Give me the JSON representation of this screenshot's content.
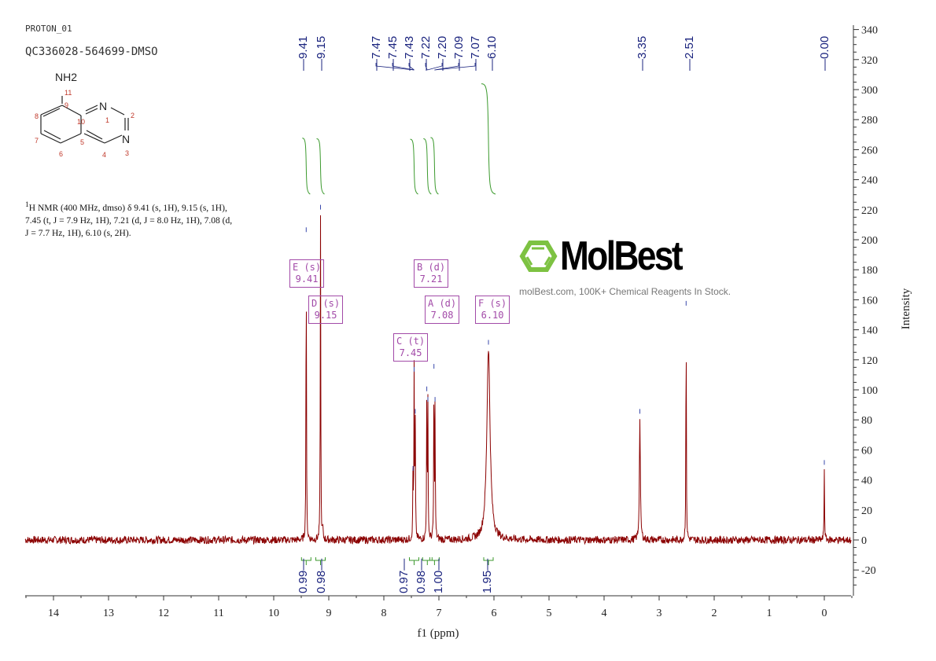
{
  "header": {
    "experiment": "PROTON_01",
    "sample": "QC336028-564699-DMSO"
  },
  "structure": {
    "substituent": "NH2",
    "atom_numbers": [
      "1",
      "2",
      "3",
      "4",
      "5",
      "6",
      "7",
      "8",
      "9",
      "10",
      "11"
    ],
    "heteroatoms": [
      "N",
      "N"
    ]
  },
  "nmr_description": {
    "line1": "H NMR (400 MHz, dmso) δ 9.41 (s, 1H), 9.15 (s, 1H),",
    "sup": "1",
    "line2": "7.45 (t, J = 7.9 Hz, 1H), 7.21 (d, J = 8.0 Hz, 1H), 7.08 (d,",
    "line3": "J = 7.7 Hz, 1H), 6.10 (s, 2H)."
  },
  "multiplet_boxes": [
    {
      "label": "E (s)",
      "value": "9.41"
    },
    {
      "label": "D (s)",
      "value": "9.15"
    },
    {
      "label": "B (d)",
      "value": "7.21"
    },
    {
      "label": "A (d)",
      "value": "7.08"
    },
    {
      "label": "F (s)",
      "value": "6.10"
    },
    {
      "label": "C (t)",
      "value": "7.45"
    }
  ],
  "watermark": {
    "logo_text": "MolBest",
    "tagline": "molBest.com, 100K+ Chemical Reagents In Stock.",
    "logo_color": "#7dc242"
  },
  "colors": {
    "spectrum": "#8b0000",
    "integral": "#3c9a2e",
    "peak_label": "#1a237e",
    "box": "#a24aa8"
  },
  "chart_data": {
    "type": "line",
    "xlabel": "f1 (ppm)",
    "ylabel": "Intensity",
    "xlim": [
      14.5,
      -0.5
    ],
    "ylim": [
      -30,
      345
    ],
    "x_reversed": true,
    "x_ticks": [
      "14",
      "13",
      "12",
      "11",
      "10",
      "9",
      "8",
      "7",
      "6",
      "5",
      "4",
      "3",
      "2",
      "1",
      "0"
    ],
    "y_ticks": [
      "340",
      "320",
      "300",
      "280",
      "260",
      "240",
      "220",
      "200",
      "180",
      "160",
      "140",
      "120",
      "100",
      "80",
      "60",
      "40",
      "20",
      "0",
      "-20"
    ],
    "peak_labels": [
      "9.41",
      "9.15",
      "7.47",
      "7.45",
      "7.43",
      "7.22",
      "7.20",
      "7.09",
      "7.07",
      "6.10",
      "3.35",
      "2.51",
      "0.00"
    ],
    "peaks": [
      {
        "ppm": 9.41,
        "intensity": 203
      },
      {
        "ppm": 9.15,
        "intensity": 218
      },
      {
        "ppm": 9.11,
        "intensity": 8
      },
      {
        "ppm": 7.47,
        "intensity": 44
      },
      {
        "ppm": 7.45,
        "intensity": 110
      },
      {
        "ppm": 7.43,
        "intensity": 82
      },
      {
        "ppm": 7.22,
        "intensity": 97
      },
      {
        "ppm": 7.2,
        "intensity": 90
      },
      {
        "ppm": 7.09,
        "intensity": 112
      },
      {
        "ppm": 7.07,
        "intensity": 90
      },
      {
        "ppm": 6.1,
        "intensity": 128
      },
      {
        "ppm": 3.35,
        "intensity": 82
      },
      {
        "ppm": 2.51,
        "intensity": 154
      },
      {
        "ppm": 0.0,
        "intensity": 48
      }
    ],
    "integrals": [
      {
        "ppm": 9.41,
        "value": "0.99"
      },
      {
        "ppm": 9.15,
        "value": "0.98"
      },
      {
        "ppm": 7.45,
        "value": "0.97"
      },
      {
        "ppm": 7.21,
        "value": "0.98"
      },
      {
        "ppm": 7.08,
        "value": "1.00"
      },
      {
        "ppm": 6.1,
        "value": "1.95"
      }
    ]
  }
}
